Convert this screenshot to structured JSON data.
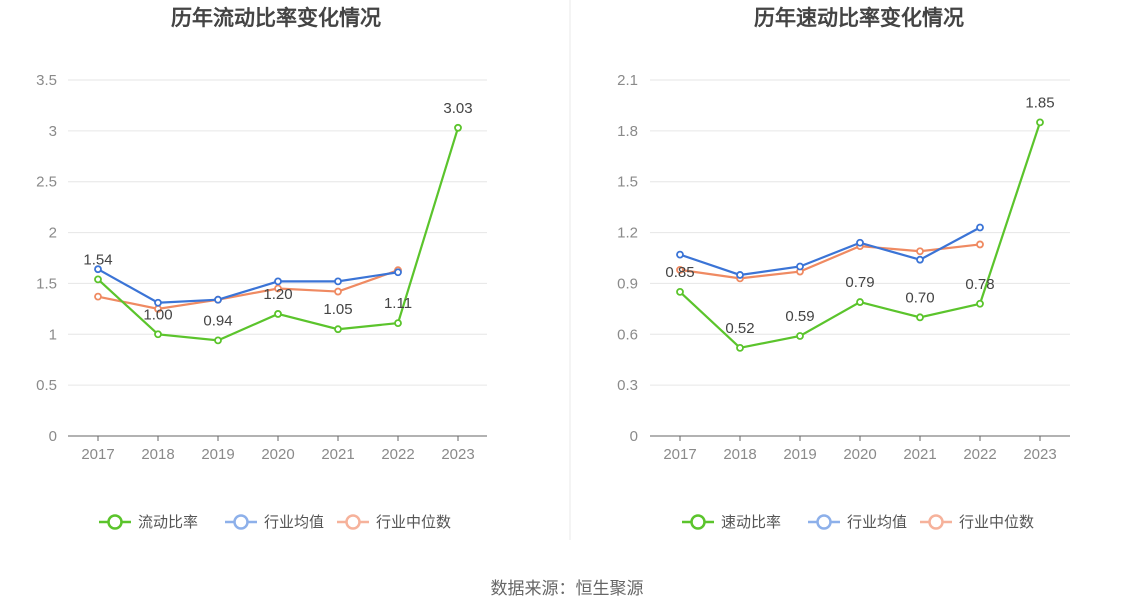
{
  "source_label": "数据来源：恒生聚源",
  "colors": {
    "company": "#5bc42c",
    "industry_avg": "#3b74d6",
    "industry_median": "#ef8a62",
    "legend_avg": "#8db0ea",
    "legend_median": "#f6b29b"
  },
  "chart_data": [
    {
      "type": "line",
      "title": "历年流动比率变化情况",
      "categories": [
        "2017",
        "2018",
        "2019",
        "2020",
        "2021",
        "2022",
        "2023"
      ],
      "ylim": [
        0,
        3.5
      ],
      "yticks": [
        "0",
        "0.5",
        "1",
        "1.5",
        "2",
        "2.5",
        "3",
        "3.5"
      ],
      "ytick_values": [
        0,
        0.5,
        1,
        1.5,
        2,
        2.5,
        3,
        3.5
      ],
      "grid": true,
      "legend_position": "bottom",
      "series": [
        {
          "name": "流动比率",
          "key": "company",
          "values": [
            1.54,
            1.0,
            0.94,
            1.2,
            1.05,
            1.11,
            3.03
          ],
          "labels": [
            "1.54",
            "1.00",
            "0.94",
            "1.20",
            "1.05",
            "1.11",
            "3.03"
          ]
        },
        {
          "name": "行业均值",
          "key": "industry_avg",
          "values": [
            1.64,
            1.31,
            1.34,
            1.52,
            1.52,
            1.61,
            null
          ]
        },
        {
          "name": "行业中位数",
          "key": "industry_median",
          "values": [
            1.37,
            1.25,
            1.34,
            1.45,
            1.42,
            1.63,
            null
          ]
        }
      ]
    },
    {
      "type": "line",
      "title": "历年速动比率变化情况",
      "categories": [
        "2017",
        "2018",
        "2019",
        "2020",
        "2021",
        "2022",
        "2023"
      ],
      "ylim": [
        0,
        2.1
      ],
      "yticks": [
        "0",
        "0.3",
        "0.6",
        "0.9",
        "1.2",
        "1.5",
        "1.8",
        "2.1"
      ],
      "ytick_values": [
        0,
        0.3,
        0.6,
        0.9,
        1.2,
        1.5,
        1.8,
        2.1
      ],
      "grid": true,
      "legend_position": "bottom",
      "series": [
        {
          "name": "速动比率",
          "key": "company",
          "values": [
            0.85,
            0.52,
            0.59,
            0.79,
            0.7,
            0.78,
            1.85
          ],
          "labels": [
            "0.85",
            "0.52",
            "0.59",
            "0.79",
            "0.70",
            "0.78",
            "1.85"
          ]
        },
        {
          "name": "行业均值",
          "key": "industry_avg",
          "values": [
            1.07,
            0.95,
            1.0,
            1.14,
            1.04,
            1.23,
            null
          ]
        },
        {
          "name": "行业中位数",
          "key": "industry_median",
          "values": [
            0.98,
            0.93,
            0.97,
            1.12,
            1.09,
            1.13,
            null
          ]
        }
      ]
    }
  ]
}
